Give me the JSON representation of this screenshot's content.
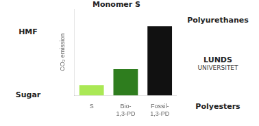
{
  "chart_data": {
    "type": "bar",
    "categories": [
      "S",
      "Bio-\n1,3-PD",
      "Fossil-\n1,3-PD"
    ],
    "values": [
      0.15,
      0.38,
      1.0
    ],
    "colors": [
      "#aae855",
      "#2e7d1e",
      "#111111"
    ],
    "ylabel": "CO₂ emission",
    "ylim": [
      0,
      1.25
    ],
    "yticks": [],
    "tick_labels": "x",
    "grid": false,
    "annotations": [
      "HMF",
      "Sugar",
      "Monomer S",
      "Polyurethanes",
      "LUNDS",
      "UNIVERSITET",
      "Polyesters"
    ]
  }
}
